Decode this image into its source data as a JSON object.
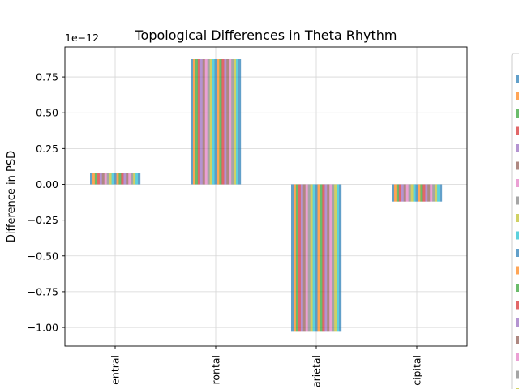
{
  "chart_data": {
    "type": "bar",
    "title": "Topological Differences in Theta Rhythm",
    "xlabel": "",
    "ylabel": "Difference in PSD",
    "y_offset_label": "1e−12",
    "categories": [
      "Central",
      "Frontal",
      "Parietal",
      "Occipital"
    ],
    "visible_category_labels": [
      "entral",
      "rontal",
      "arietal",
      "cipital"
    ],
    "values": [
      8e-14,
      8.75e-13,
      -1.03e-12,
      -1.2e-13
    ],
    "ylim": [
      -1.13e-12,
      9.6e-13
    ],
    "yticks": [
      -1e-12,
      -7.5e-13,
      -5e-13,
      -2.5e-13,
      0,
      2.5e-13,
      5e-13,
      7.5e-13
    ],
    "ytick_labels": [
      "−1.00",
      "−0.75",
      "−0.50",
      "−0.25",
      "0.00",
      "0.25",
      "0.50",
      "0.75"
    ],
    "grid": true,
    "legend_position": "right (cropped)",
    "stripe_count_per_bar": 21,
    "legend_entries_visible": 19,
    "bar_colors": [
      "#1f77b4",
      "#ff7f0e",
      "#2ca02c",
      "#d62728",
      "#9467bd",
      "#8c564b",
      "#e377c2",
      "#7f7f7f",
      "#bcbd22",
      "#17becf"
    ],
    "bar_alpha": 0.7
  }
}
